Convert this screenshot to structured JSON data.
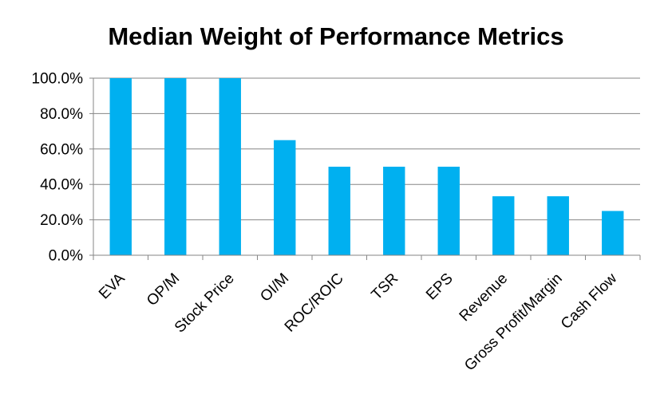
{
  "chart_data": {
    "type": "bar",
    "title": "Median Weight of Performance Metrics",
    "xlabel": "",
    "ylabel": "",
    "categories": [
      "EVA",
      "OP/M",
      "Stock Price",
      "OI/M",
      "ROC/ROIC",
      "TSR",
      "EPS",
      "Revenue",
      "Gross Profit/Margin",
      "Cash Flow"
    ],
    "series": [
      {
        "values": [
          100.0,
          100.0,
          100.0,
          65.0,
          50.0,
          50.0,
          50.0,
          33.3,
          33.3,
          25.0
        ]
      }
    ],
    "ylim": [
      0,
      100
    ],
    "yticks": [
      0,
      20,
      40,
      60,
      80,
      100
    ],
    "ytick_labels": [
      "0.0%",
      "20.0%",
      "40.0%",
      "60.0%",
      "80.0%",
      "100.0%"
    ],
    "grid": true,
    "legend": "none",
    "colors": {
      "bar": "#00b0f0",
      "grid": "#868686",
      "axis": "#868686"
    }
  }
}
